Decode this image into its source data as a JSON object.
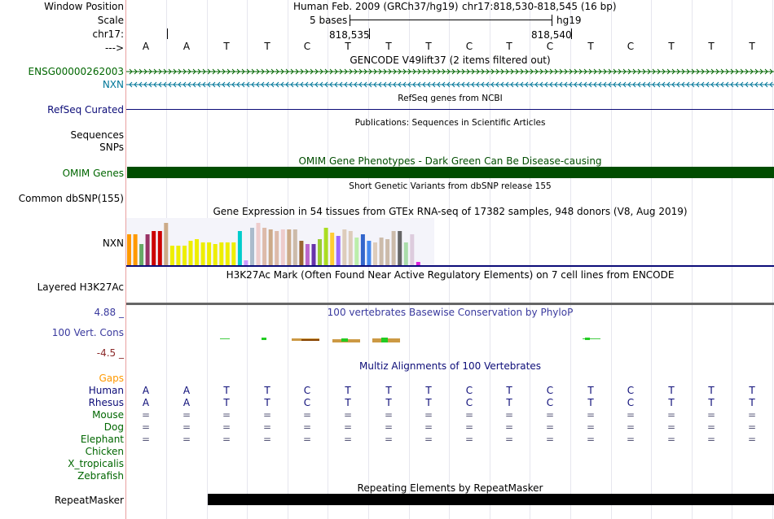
{
  "position": {
    "window_label": "Window Position",
    "scale_label": "Scale",
    "chrom_label": "chr17:",
    "arrow_label": "--->",
    "assembly": "Human Feb. 2009 (GRCh37/hg19)",
    "range": "chr17:818,530-818,545 (16 bp)",
    "scale_text": "5 bases",
    "scale_db": "hg19",
    "tick1": "818,535",
    "tick2": "818,540"
  },
  "bases": [
    "A",
    "A",
    "T",
    "T",
    "C",
    "T",
    "T",
    "T",
    "C",
    "T",
    "C",
    "T",
    "C",
    "T",
    "T",
    "T"
  ],
  "tracks": {
    "gencode_title": "GENCODE V49lift37 (2 items filtered out)",
    "gene1": "ENSG00000262003",
    "gene2": "NXN",
    "refseq_label": "RefSeq Curated",
    "refseq_title": "RefSeq genes from NCBI",
    "pubs_label": "Sequences",
    "pubs_title": "Publications: Sequences in Scientific Articles",
    "snps_label": "SNPs",
    "omim_label": "OMIM Genes",
    "omim_title": "OMIM Gene Phenotypes - Dark Green Can Be Disease-causing",
    "dbsnp_label": "Common dbSNP(155)",
    "dbsnp_title": "Short Genetic Variants from dbSNP release 155",
    "gtex_title": "Gene Expression in 54 tissues from GTEx RNA-seq of 17382 samples, 948 donors (V8, Aug 2019)",
    "gtex_label": "NXN",
    "h3k27_label": "Layered H3K27Ac",
    "h3k27_title": "H3K27Ac Mark (Often Found Near Active Regulatory Elements) on 7 cell lines from ENCODE",
    "phylop_max": "4.88 _",
    "phylop_label": "100 Vert. Cons",
    "phylop_min": "-4.5 _",
    "phylop_title": "100 vertebrates Basewise Conservation by PhyloP",
    "multiz_title": "Multiz Alignments of 100 Vertebrates",
    "repeat_title": "Repeating Elements by RepeatMasker",
    "repeat_label": "RepeatMasker"
  },
  "species": [
    {
      "name": "Gaps",
      "kind": "gaps"
    },
    {
      "name": "Human",
      "kind": "seq"
    },
    {
      "name": "Rhesus",
      "kind": "seq"
    },
    {
      "name": "Mouse",
      "kind": "eq"
    },
    {
      "name": "Dog",
      "kind": "eq"
    },
    {
      "name": "Elephant",
      "kind": "eq"
    },
    {
      "name": "Chicken",
      "kind": "none"
    },
    {
      "name": "X_tropicalis",
      "kind": "none"
    },
    {
      "name": "Zebrafish",
      "kind": "none"
    }
  ],
  "eq_symbol": "=",
  "gtex_bars": {
    "heights": [
      38,
      38,
      26,
      38,
      42,
      42,
      52,
      24,
      24,
      24,
      30,
      32,
      28,
      28,
      26,
      28,
      28,
      28,
      42,
      6,
      46,
      52,
      46,
      44,
      42,
      44,
      44,
      44,
      30,
      26,
      26,
      32,
      46,
      40,
      36,
      44,
      42,
      34,
      38,
      30,
      28,
      34,
      32,
      42,
      42,
      28,
      38,
      4
    ],
    "colors": [
      "#ff9900",
      "#ff9900",
      "#66aa66",
      "#993366",
      "#cc0000",
      "#cc0000",
      "#ccaa88",
      "#eeee00",
      "#eeee00",
      "#eeee00",
      "#eeee00",
      "#eeee00",
      "#eeee00",
      "#eeee00",
      "#eeee00",
      "#eeee00",
      "#eeee00",
      "#eeee00",
      "#00cccc",
      "#cc99ff",
      "#aabbcc",
      "#eecccc",
      "#ddbbaa",
      "#ccaa88",
      "#ddbbaa",
      "#eecccc",
      "#ccaa88",
      "#ccbbaa",
      "#996633",
      "#bb66cc",
      "#6633aa",
      "#99cc33",
      "#aadd22",
      "#ffcc33",
      "#9966ff",
      "#ddccbb",
      "#ddccbb",
      "#bbeeaa",
      "#3366cc",
      "#4488ee",
      "#ddccbb",
      "#ccbbaa",
      "#ccbbaa",
      "#ccbbaa",
      "#666666",
      "#aaddaa",
      "#ddccdd",
      "#dd22dd"
    ]
  },
  "colors": {
    "gencode": "#006600",
    "nxn": "#007799",
    "refseq": "#0c0c78",
    "omim": "#004d00",
    "phylop": "#3a3a9e",
    "gaps": "#ff9900",
    "species": "#006600"
  }
}
